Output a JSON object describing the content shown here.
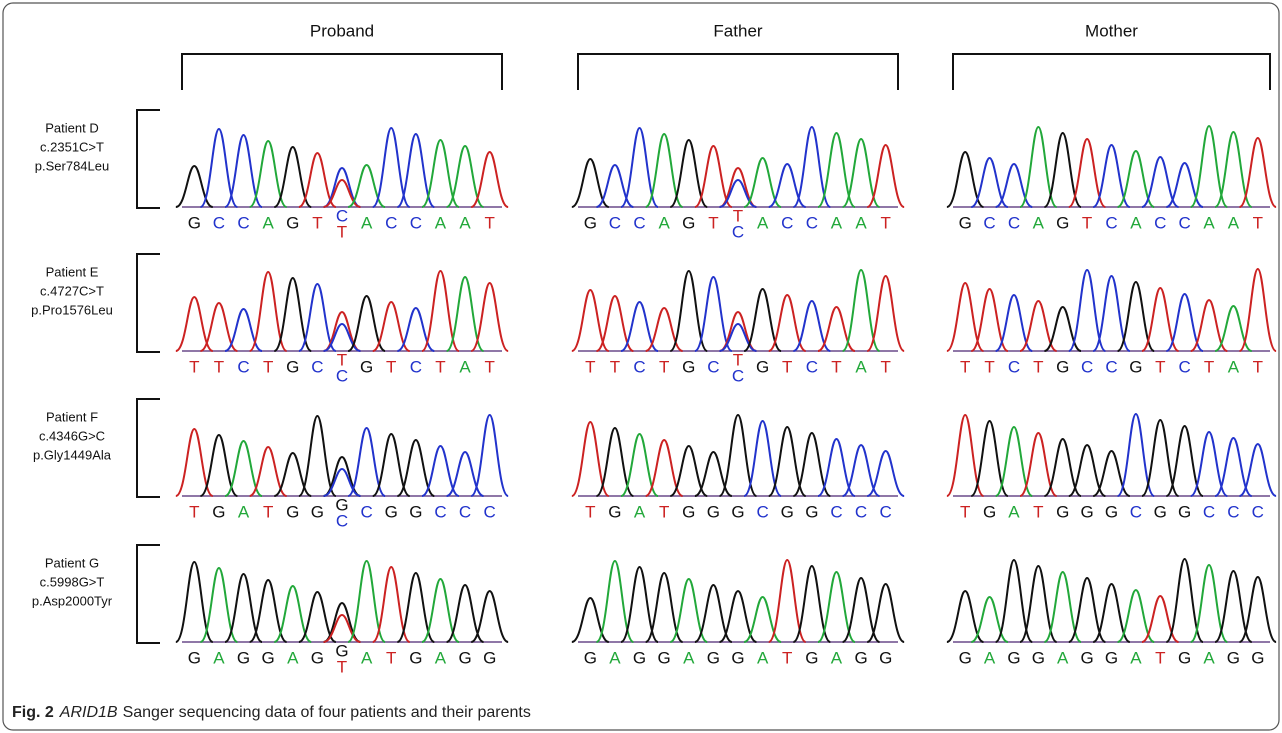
{
  "columns": [
    "Proband",
    "Father",
    "Mother"
  ],
  "base_colors": {
    "A": "#22a83a",
    "C": "#2233cc",
    "G": "#111111",
    "T": "#cc2222"
  },
  "rows": [
    {
      "patient": "Patient D",
      "cdna": "c.2351C>T",
      "protein": "p.Ser784Leu",
      "panels": [
        {
          "bases": [
            "G",
            "C",
            "C",
            "A",
            "G",
            "T",
            "C",
            "A",
            "C",
            "C",
            "A",
            "A",
            "T"
          ],
          "variant": {
            "index": 6,
            "base": "T"
          }
        },
        {
          "bases": [
            "G",
            "C",
            "C",
            "A",
            "G",
            "T",
            "T",
            "A",
            "C",
            "C",
            "A",
            "A",
            "T"
          ],
          "variant": {
            "index": 6,
            "base": "C"
          }
        },
        {
          "bases": [
            "G",
            "C",
            "C",
            "A",
            "G",
            "T",
            "C",
            "A",
            "C",
            "C",
            "A",
            "A",
            "T"
          ]
        }
      ]
    },
    {
      "patient": "Patient E",
      "cdna": "c.4727C>T",
      "protein": "p.Pro1576Leu",
      "panels": [
        {
          "bases": [
            "T",
            "T",
            "C",
            "T",
            "G",
            "C",
            "T",
            "G",
            "T",
            "C",
            "T",
            "A",
            "T"
          ],
          "variant": {
            "index": 6,
            "base": "C"
          }
        },
        {
          "bases": [
            "T",
            "T",
            "C",
            "T",
            "G",
            "C",
            "T",
            "G",
            "T",
            "C",
            "T",
            "A",
            "T"
          ],
          "variant": {
            "index": 6,
            "base": "C"
          }
        },
        {
          "bases": [
            "T",
            "T",
            "C",
            "T",
            "G",
            "C",
            "C",
            "G",
            "T",
            "C",
            "T",
            "A",
            "T"
          ]
        }
      ]
    },
    {
      "patient": "Patient F",
      "cdna": "c.4346G>C",
      "protein": "p.Gly1449Ala",
      "panels": [
        {
          "bases": [
            "T",
            "G",
            "A",
            "T",
            "G",
            "G",
            "G",
            "C",
            "G",
            "G",
            "C",
            "C",
            "C"
          ],
          "variant": {
            "index": 6,
            "base": "C"
          }
        },
        {
          "bases": [
            "T",
            "G",
            "A",
            "T",
            "G",
            "G",
            "G",
            "C",
            "G",
            "G",
            "C",
            "C",
            "C"
          ]
        },
        {
          "bases": [
            "T",
            "G",
            "A",
            "T",
            "G",
            "G",
            "G",
            "C",
            "G",
            "G",
            "C",
            "C",
            "C"
          ]
        }
      ]
    },
    {
      "patient": "Patient G",
      "cdna": "c.5998G>T",
      "protein": "p.Asp2000Tyr",
      "panels": [
        {
          "bases": [
            "G",
            "A",
            "G",
            "G",
            "A",
            "G",
            "G",
            "A",
            "T",
            "G",
            "A",
            "G",
            "G"
          ],
          "variant": {
            "index": 6,
            "base": "T"
          }
        },
        {
          "bases": [
            "G",
            "A",
            "G",
            "G",
            "A",
            "G",
            "G",
            "A",
            "T",
            "G",
            "A",
            "G",
            "G"
          ]
        },
        {
          "bases": [
            "G",
            "A",
            "G",
            "G",
            "A",
            "G",
            "G",
            "A",
            "T",
            "G",
            "A",
            "G",
            "G"
          ]
        }
      ]
    }
  ],
  "caption": {
    "label": "Fig. 2",
    "gene": "ARID1B",
    "text": "Sanger sequencing data of four patients and their parents"
  }
}
